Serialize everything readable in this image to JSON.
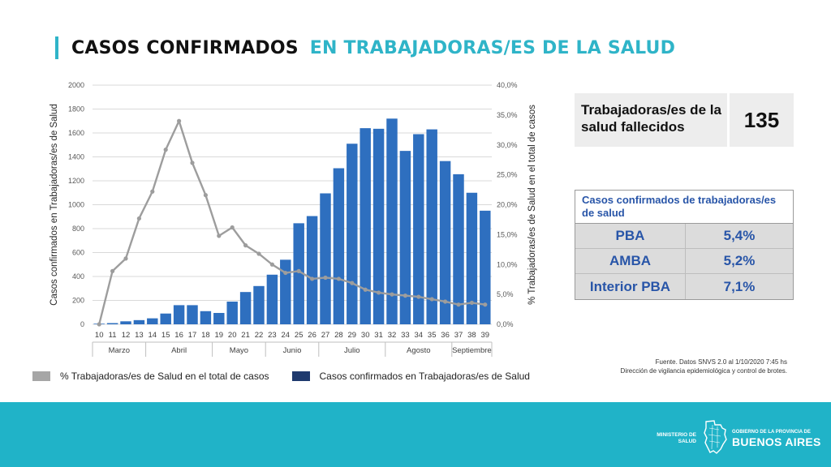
{
  "title": {
    "main": "CASOS CONFIRMADOS",
    "sub": "EN TRABAJADORAS/ES DE LA SALUD"
  },
  "chart_data": {
    "type": "bar",
    "categories": [
      "10",
      "11",
      "12",
      "13",
      "14",
      "15",
      "16",
      "17",
      "18",
      "19",
      "20",
      "21",
      "22",
      "23",
      "24",
      "25",
      "26",
      "27",
      "28",
      "29",
      "30",
      "31",
      "32",
      "33",
      "34",
      "35",
      "36",
      "37",
      "38",
      "39"
    ],
    "month_groups": [
      {
        "label": "Marzo",
        "from": 0,
        "to": 3
      },
      {
        "label": "Abril",
        "from": 4,
        "to": 8
      },
      {
        "label": "Mayo",
        "from": 9,
        "to": 12
      },
      {
        "label": "Junio",
        "from": 13,
        "to": 16
      },
      {
        "label": "Julio",
        "from": 17,
        "to": 21
      },
      {
        "label": "Agosto",
        "from": 22,
        "to": 26
      },
      {
        "label": "Septiembre",
        "from": 27,
        "to": 29
      }
    ],
    "series": [
      {
        "name": "Casos confirmados en Trabajadoras/es de Salud",
        "type": "bar",
        "axis": "left",
        "color": "#2e6fbf",
        "values": [
          5,
          10,
          25,
          35,
          50,
          90,
          160,
          160,
          110,
          95,
          190,
          270,
          320,
          415,
          540,
          845,
          905,
          1095,
          1305,
          1510,
          1640,
          1635,
          1720,
          1450,
          1590,
          1630,
          1365,
          1255,
          1100,
          950
        ]
      },
      {
        "name": "% Trabajadoras/es de Salud en el total de casos",
        "type": "line",
        "axis": "right",
        "color": "#9d9d9d",
        "values": [
          0.0,
          8.9,
          11.0,
          17.7,
          22.2,
          29.2,
          34.0,
          27.0,
          21.6,
          14.8,
          16.2,
          13.2,
          11.8,
          10.0,
          8.6,
          8.9,
          7.6,
          7.8,
          7.6,
          6.9,
          5.8,
          5.3,
          5.0,
          4.8,
          4.6,
          4.2,
          3.8,
          3.3,
          3.6,
          3.3
        ]
      }
    ],
    "y_left": {
      "label": "Casos confirmados en Trabajadoras/es de Salud",
      "min": 0,
      "max": 2000,
      "ticks": [
        "0",
        "200",
        "400",
        "600",
        "800",
        "1000",
        "1200",
        "1400",
        "1600",
        "1800",
        "2000"
      ]
    },
    "y_right": {
      "label": "% Trabajadoras/es de Salud en el total de casos",
      "min": 0,
      "max": 40,
      "ticks": [
        "0,0%",
        "5,0%",
        "10,0%",
        "15,0%",
        "20,0%",
        "25,0%",
        "30,0%",
        "35,0%",
        "40,0%"
      ]
    },
    "grid": true,
    "legend_position": "bottom"
  },
  "legend": {
    "line_label": "% Trabajadoras/es de Salud en el total de casos",
    "bar_label": "Casos confirmados en Trabajadoras/es de Salud",
    "line_color": "#a6a6a6",
    "bar_color": "#1f3a6e"
  },
  "fallecidos": {
    "label": "Trabajadoras/es de la salud fallecidos",
    "value": "135"
  },
  "pct_table": {
    "header": "Casos confirmados  de trabajadoras/es  de salud",
    "rows": [
      {
        "region": "PBA",
        "pct": "5,4%"
      },
      {
        "region": "AMBA",
        "pct": "5,2%"
      },
      {
        "region": "Interior PBA",
        "pct": "7,1%"
      }
    ]
  },
  "source": {
    "line1": "Fuente. Datos SNVS 2.0 al 1/10/2020 7:45 hs",
    "line2": "Dirección de vigilancia epidemiológica y control de brotes."
  },
  "footer": {
    "ministry": "MINISTERIO DE SALUD",
    "gov_small": "GOBIERNO DE LA PROVINCIA DE",
    "gov_big": "BUENOS AIRES"
  }
}
